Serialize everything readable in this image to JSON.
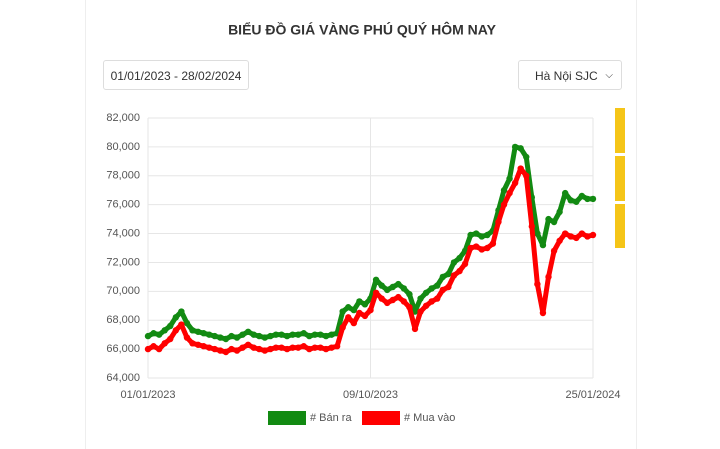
{
  "date_range": "01/01/2023 - 28/02/2024",
  "location_select": "Hà Nội SJC",
  "chart_data": {
    "type": "line",
    "title": "BIỂU ĐỒ GIÁ VÀNG PHÚ QUÝ HÔM NAY",
    "categories": [
      "01/01/2023",
      null,
      null,
      null,
      null,
      null,
      null,
      null,
      null,
      null,
      null,
      null,
      null,
      null,
      null,
      null,
      null,
      null,
      null,
      null,
      null,
      null,
      null,
      null,
      null,
      null,
      null,
      null,
      null,
      null,
      null,
      null,
      null,
      null,
      null,
      null,
      null,
      null,
      null,
      null,
      "09/10/2023",
      null,
      null,
      null,
      null,
      null,
      null,
      null,
      null,
      null,
      null,
      null,
      null,
      null,
      null,
      null,
      null,
      null,
      null,
      null,
      null,
      null,
      null,
      null,
      null,
      null,
      null,
      null,
      null,
      null,
      null,
      null,
      null,
      null,
      null,
      null,
      null,
      null,
      null,
      null,
      "25/01/2024"
    ],
    "series": [
      {
        "name": "# Bán ra",
        "color": "#128a12",
        "values": [
          66900,
          67100,
          67000,
          67300,
          67600,
          68200,
          68600,
          67800,
          67300,
          67200,
          67100,
          67000,
          66900,
          66800,
          66700,
          66900,
          66800,
          67000,
          67200,
          67000,
          66900,
          66800,
          66900,
          67000,
          67000,
          66900,
          67000,
          67000,
          67100,
          66900,
          67000,
          67000,
          66900,
          67000,
          67100,
          68600,
          68900,
          68700,
          69300,
          69100,
          69500,
          70800,
          70400,
          70100,
          70300,
          70500,
          70200,
          69800,
          68600,
          69500,
          69900,
          70200,
          70400,
          71000,
          71200,
          72000,
          72300,
          72800,
          73900,
          74000,
          73800,
          73900,
          74200,
          75600,
          77000,
          77800,
          80000,
          79900,
          79300,
          76500,
          74000,
          73200,
          75000,
          74800,
          75500,
          76800,
          76300,
          76200,
          76600,
          76400,
          76400
        ]
      },
      {
        "name": "# Mua vào",
        "color": "#ff0000",
        "values": [
          66000,
          66200,
          66000,
          66400,
          66700,
          67300,
          67700,
          66800,
          66400,
          66300,
          66200,
          66100,
          66000,
          65900,
          65800,
          66000,
          65900,
          66100,
          66300,
          66100,
          66000,
          65900,
          66000,
          66100,
          66100,
          66000,
          66100,
          66100,
          66200,
          66000,
          66100,
          66100,
          66000,
          66100,
          66200,
          67500,
          68200,
          67800,
          68500,
          68300,
          68700,
          69900,
          69500,
          69200,
          69400,
          69600,
          69300,
          68900,
          67400,
          68600,
          69000,
          69300,
          69500,
          70100,
          70300,
          71100,
          71400,
          71900,
          73000,
          73100,
          72900,
          73000,
          73300,
          74800,
          76000,
          76800,
          77500,
          78500,
          78000,
          74500,
          70500,
          68500,
          71000,
          72800,
          73500,
          74000,
          73800,
          73700,
          74000,
          73800,
          73900
        ]
      }
    ],
    "ylim": [
      64000,
      82000
    ],
    "yticks": [
      {
        "value": 64000,
        "label": "64,000"
      },
      {
        "value": 66000,
        "label": "66,000"
      },
      {
        "value": 68000,
        "label": "68,000"
      },
      {
        "value": 70000,
        "label": "70,000"
      },
      {
        "value": 72000,
        "label": "72,000"
      },
      {
        "value": 74000,
        "label": "74,000"
      },
      {
        "value": 76000,
        "label": "76,000"
      },
      {
        "value": 78000,
        "label": "78,000"
      },
      {
        "value": 80000,
        "label": "80,000"
      },
      {
        "value": 82000,
        "label": "82,000"
      }
    ],
    "grid": true
  }
}
